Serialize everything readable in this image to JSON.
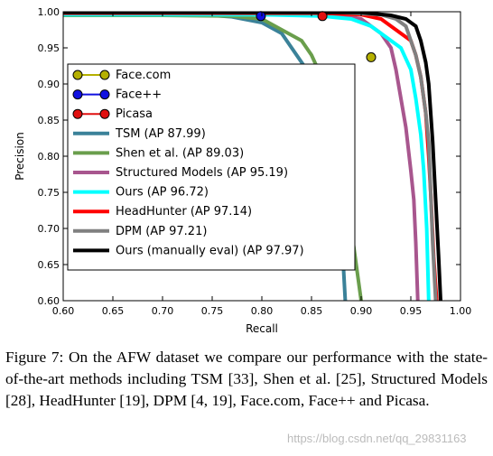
{
  "chart_data": {
    "type": "line",
    "xlabel": "Recall",
    "ylabel": "Precision",
    "xlim": [
      0.6,
      1.0
    ],
    "ylim": [
      0.6,
      1.0
    ],
    "xticks": [
      "0.60",
      "0.65",
      "0.70",
      "0.75",
      "0.80",
      "0.85",
      "0.90",
      "0.95",
      "1.00"
    ],
    "yticks": [
      "0.60",
      "0.65",
      "0.70",
      "0.75",
      "0.80",
      "0.85",
      "0.90",
      "0.95",
      "1.00"
    ],
    "grid": false,
    "legend_position": "inside, left",
    "legend": [
      {
        "name": "Face.com",
        "color": "#b5b000",
        "kind": "point"
      },
      {
        "name": "Face++",
        "color": "#1010e0",
        "kind": "point"
      },
      {
        "name": "Picasa",
        "color": "#e01010",
        "kind": "point"
      },
      {
        "name": "TSM (AP 87.99)",
        "color": "#3b8299",
        "kind": "line"
      },
      {
        "name": "Shen et al. (AP 89.03)",
        "color": "#6a9e4c",
        "kind": "line"
      },
      {
        "name": "Structured Models (AP 95.19)",
        "color": "#a8568e",
        "kind": "line"
      },
      {
        "name": "Ours (AP 96.72)",
        "color": "#00ffff",
        "kind": "line"
      },
      {
        "name": "HeadHunter (AP 97.14)",
        "color": "#ff0000",
        "kind": "line"
      },
      {
        "name": "DPM (AP 97.21)",
        "color": "#808080",
        "kind": "line"
      },
      {
        "name": "Ours (manually eval) (AP 97.97)",
        "color": "#000000",
        "kind": "line"
      }
    ],
    "points": [
      {
        "name": "Face.com",
        "x": 0.91,
        "y": 0.937
      },
      {
        "name": "Face++",
        "x": 0.799,
        "y": 0.994
      },
      {
        "name": "Picasa",
        "x": 0.861,
        "y": 0.994
      }
    ],
    "series": [
      {
        "name": "TSM (AP 87.99)",
        "x": [
          0.6,
          0.7,
          0.75,
          0.77,
          0.8,
          0.82,
          0.83,
          0.84,
          0.85,
          0.855,
          0.86,
          0.865,
          0.87,
          0.875,
          0.878,
          0.88,
          0.882,
          0.884
        ],
        "y": [
          0.995,
          0.995,
          0.995,
          0.993,
          0.985,
          0.97,
          0.95,
          0.93,
          0.91,
          0.88,
          0.86,
          0.83,
          0.81,
          0.78,
          0.75,
          0.7,
          0.65,
          0.6
        ]
      },
      {
        "name": "Shen et al. (AP 89.03)",
        "x": [
          0.6,
          0.7,
          0.77,
          0.8,
          0.82,
          0.84,
          0.85,
          0.86,
          0.865,
          0.87,
          0.875,
          0.88,
          0.885,
          0.888,
          0.891,
          0.894,
          0.897,
          0.9
        ],
        "y": [
          0.995,
          0.995,
          0.994,
          0.99,
          0.975,
          0.96,
          0.94,
          0.91,
          0.89,
          0.86,
          0.83,
          0.79,
          0.76,
          0.72,
          0.69,
          0.66,
          0.63,
          0.6
        ]
      },
      {
        "name": "Structured Models (AP 95.19)",
        "x": [
          0.6,
          0.8,
          0.88,
          0.9,
          0.91,
          0.92,
          0.93,
          0.935,
          0.94,
          0.945,
          0.95,
          0.953,
          0.955,
          0.957
        ],
        "y": [
          0.997,
          0.997,
          0.995,
          0.99,
          0.98,
          0.97,
          0.95,
          0.92,
          0.88,
          0.84,
          0.78,
          0.74,
          0.68,
          0.6
        ]
      },
      {
        "name": "Ours (AP 96.72)",
        "x": [
          0.6,
          0.8,
          0.86,
          0.89,
          0.91,
          0.92,
          0.93,
          0.94,
          0.95,
          0.955,
          0.96,
          0.963,
          0.966,
          0.968
        ],
        "y": [
          0.996,
          0.996,
          0.994,
          0.99,
          0.98,
          0.97,
          0.96,
          0.95,
          0.92,
          0.88,
          0.83,
          0.78,
          0.7,
          0.6
        ]
      },
      {
        "name": "HeadHunter (AP 97.14)",
        "x": [
          0.6,
          0.86,
          0.9,
          0.92,
          0.93,
          0.94,
          0.95,
          0.955,
          0.96,
          0.965,
          0.968,
          0.97,
          0.973,
          0.976
        ],
        "y": [
          0.998,
          0.998,
          0.996,
          0.99,
          0.98,
          0.97,
          0.96,
          0.94,
          0.91,
          0.86,
          0.8,
          0.75,
          0.66,
          0.6
        ]
      },
      {
        "name": "DPM (AP 97.21)",
        "x": [
          0.6,
          0.88,
          0.92,
          0.935,
          0.945,
          0.95,
          0.955,
          0.96,
          0.965,
          0.968,
          0.97,
          0.972,
          0.975
        ],
        "y": [
          0.999,
          0.999,
          0.996,
          0.99,
          0.98,
          0.96,
          0.94,
          0.91,
          0.86,
          0.82,
          0.75,
          0.68,
          0.6
        ]
      },
      {
        "name": "Ours (manually eval) (AP 97.97)",
        "x": [
          0.6,
          0.9,
          0.93,
          0.945,
          0.955,
          0.96,
          0.965,
          0.968,
          0.97,
          0.972,
          0.975,
          0.978,
          0.98
        ],
        "y": [
          0.999,
          0.999,
          0.995,
          0.99,
          0.98,
          0.96,
          0.93,
          0.9,
          0.86,
          0.82,
          0.74,
          0.66,
          0.6
        ]
      }
    ]
  },
  "caption": {
    "text": "Figure 7: On the AFW dataset we compare our performance with the state-of-the-art methods including TSM [33], Shen et al. [25], Structured Models [28], HeadHunter [19], DPM [4, 19], Face.com, Face++ and Picasa."
  },
  "watermark": "https://blog.csdn.net/qq_29831163"
}
